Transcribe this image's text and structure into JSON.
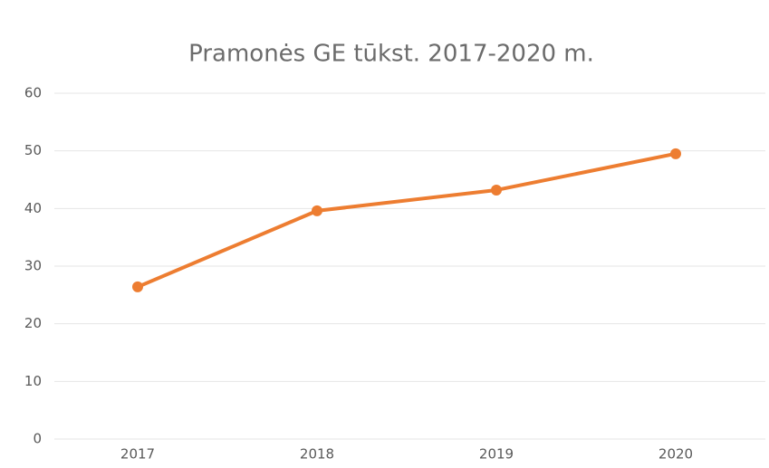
{
  "chart_data": {
    "type": "line",
    "title": "Pramonės GE tūkst. 2017-2020 m.",
    "categories": [
      "2017",
      "2018",
      "2019",
      "2020"
    ],
    "values": [
      26.4,
      39.6,
      43.2,
      49.5
    ],
    "color": "#ed7d31",
    "ylim": [
      0,
      60
    ],
    "yticks": [
      0,
      10,
      20,
      30,
      40,
      50,
      60
    ],
    "grid": true
  }
}
